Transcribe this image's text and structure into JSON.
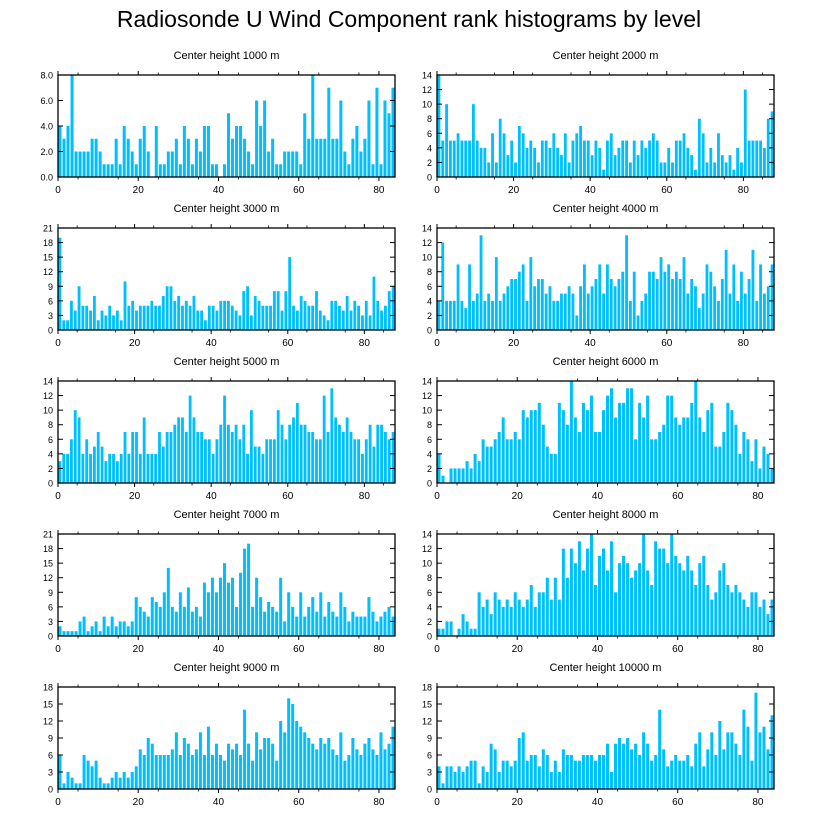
{
  "figure_title": "Radiosonde U Wind Component rank histograms by level",
  "bar_color": "#00bfff",
  "chart_data": [
    {
      "type": "bar",
      "title": "Center height 1000 m",
      "x_start": 0,
      "xticks": [
        0,
        20,
        40,
        60,
        80
      ],
      "ylim": [
        0,
        8
      ],
      "yticks": [
        0,
        2,
        4,
        6,
        8
      ],
      "ytick_labels": [
        "0.0",
        "2.0",
        "4.0",
        "6.0",
        "8.0"
      ],
      "values": [
        4,
        3,
        4,
        8,
        2,
        2,
        2,
        2,
        3,
        3,
        2,
        1,
        1,
        1,
        3,
        1,
        4,
        3,
        2,
        1,
        3,
        4,
        2,
        0,
        4,
        1,
        1,
        2,
        2,
        3,
        1,
        4,
        3,
        1,
        3,
        2,
        4,
        4,
        1,
        1,
        0,
        1,
        5,
        3,
        4,
        4,
        3,
        2,
        1,
        6,
        4,
        6,
        2,
        3,
        1,
        1,
        2,
        2,
        2,
        2,
        1,
        5,
        3,
        8,
        3,
        3,
        3,
        7,
        3,
        3,
        6,
        2,
        1,
        3,
        4,
        2,
        3,
        6,
        1,
        7,
        1,
        6,
        5,
        7
      ]
    },
    {
      "type": "bar",
      "title": "Center height 2000 m",
      "x_start": 0,
      "xticks": [
        0,
        20,
        40,
        60,
        80
      ],
      "ylim": [
        0,
        14
      ],
      "yticks": [
        0,
        2,
        4,
        6,
        8,
        10,
        12,
        14
      ],
      "ytick_labels": [
        "0",
        "2",
        "4",
        "6",
        "8",
        "10",
        "12",
        "14"
      ],
      "values": [
        14,
        5,
        10,
        5,
        5,
        6,
        5,
        5,
        5,
        10,
        5,
        4,
        4,
        2,
        6,
        2,
        8,
        6,
        3,
        5,
        2,
        7,
        6,
        4,
        5,
        4,
        2,
        5,
        5,
        4,
        6,
        4,
        3,
        6,
        2,
        5,
        6,
        7,
        5,
        5,
        3,
        5,
        4,
        1,
        5,
        6,
        3,
        4,
        5,
        5,
        2,
        5,
        3,
        5,
        4,
        5,
        6,
        5,
        2,
        2,
        4,
        2,
        5,
        5,
        6,
        4,
        3,
        1,
        8,
        6,
        2,
        4,
        2,
        6,
        3,
        2,
        3,
        1,
        4,
        2,
        12,
        5,
        5,
        5,
        5,
        4,
        8,
        9
      ]
    },
    {
      "type": "bar",
      "title": "Center height 3000 m",
      "x_start": 0,
      "xticks": [
        0,
        20,
        40,
        60,
        80
      ],
      "ylim": [
        0,
        21
      ],
      "yticks": [
        0,
        3,
        6,
        9,
        12,
        15,
        18,
        21
      ],
      "ytick_labels": [
        "0",
        "3",
        "6",
        "9",
        "12",
        "15",
        "18",
        "21"
      ],
      "values": [
        19,
        2,
        2,
        6,
        4,
        9,
        5,
        5,
        4,
        7,
        2,
        4,
        3,
        5,
        3,
        4,
        2,
        10,
        5,
        6,
        4,
        5,
        5,
        5,
        6,
        5,
        5,
        7,
        9,
        9,
        6,
        7,
        5,
        6,
        5,
        7,
        4,
        4,
        2,
        5,
        5,
        4,
        6,
        6,
        6,
        5,
        4,
        3,
        8,
        9,
        3,
        7,
        6,
        5,
        5,
        5,
        8,
        8,
        4,
        8,
        15,
        5,
        4,
        7,
        6,
        5,
        5,
        8,
        4,
        3,
        2,
        6,
        6,
        5,
        4,
        7,
        4,
        6,
        5,
        3,
        6,
        3,
        11,
        6,
        4,
        5,
        8,
        9
      ]
    },
    {
      "type": "bar",
      "title": "Center height 4000 m",
      "x_start": 0,
      "xticks": [
        0,
        20,
        40,
        60,
        80
      ],
      "ylim": [
        0,
        14
      ],
      "yticks": [
        0,
        2,
        4,
        6,
        8,
        10,
        12,
        14
      ],
      "ytick_labels": [
        "0",
        "2",
        "4",
        "6",
        "8",
        "10",
        "12",
        "14"
      ],
      "values": [
        4,
        12,
        4,
        4,
        4,
        9,
        4,
        3,
        9,
        4,
        5,
        13,
        4,
        5,
        4,
        10,
        4,
        5,
        6,
        7,
        7,
        8,
        9,
        4,
        10,
        6,
        7,
        7,
        5,
        6,
        4,
        4,
        5,
        5,
        6,
        5,
        2,
        6,
        9,
        5,
        6,
        7,
        9,
        5,
        9,
        7,
        6,
        7,
        8,
        13,
        4,
        8,
        2,
        4,
        5,
        8,
        8,
        7,
        10,
        8,
        9,
        7,
        8,
        7,
        10,
        5,
        7,
        6,
        3,
        5,
        9,
        8,
        6,
        4,
        7,
        11,
        5,
        9,
        4,
        8,
        5,
        7,
        11,
        4,
        9,
        5,
        6,
        9
      ]
    },
    {
      "type": "bar",
      "title": "Center height 5000 m",
      "x_start": 0,
      "xticks": [
        0,
        20,
        40,
        60,
        80
      ],
      "ylim": [
        0,
        14
      ],
      "yticks": [
        0,
        2,
        4,
        6,
        8,
        10,
        12,
        14
      ],
      "ytick_labels": [
        "0",
        "2",
        "4",
        "6",
        "8",
        "10",
        "12",
        "14"
      ],
      "values": [
        3,
        4,
        4,
        6,
        10,
        9,
        4,
        6,
        4,
        5,
        7,
        5,
        3,
        4,
        4,
        3,
        4,
        7,
        4,
        7,
        7,
        4,
        9,
        4,
        4,
        4,
        7,
        5,
        7,
        7,
        8,
        9,
        9,
        7,
        12,
        9,
        7,
        7,
        6,
        6,
        4,
        6,
        8,
        12,
        8,
        7,
        8,
        6,
        8,
        4,
        10,
        5,
        5,
        4,
        6,
        6,
        6,
        10,
        8,
        6,
        8,
        9,
        11,
        8,
        8,
        7,
        7,
        6,
        6,
        12,
        7,
        13,
        9,
        8,
        7,
        9,
        7,
        6,
        6,
        4,
        6,
        8,
        5,
        8,
        8,
        7,
        6,
        7
      ]
    },
    {
      "type": "bar",
      "title": "Center height 6000 m",
      "x_start": 0,
      "xticks": [
        0,
        20,
        40,
        60,
        80
      ],
      "ylim": [
        0,
        14
      ],
      "yticks": [
        0,
        2,
        4,
        6,
        8,
        10,
        12,
        14
      ],
      "ytick_labels": [
        "0",
        "2",
        "4",
        "6",
        "8",
        "10",
        "12",
        "14"
      ],
      "values": [
        4,
        1,
        0,
        2,
        2,
        2,
        2,
        3,
        2,
        4,
        3,
        6,
        5,
        5,
        6,
        7,
        9,
        6,
        6,
        7,
        6,
        10,
        9,
        10,
        10,
        11,
        8,
        5,
        4,
        4,
        11,
        10,
        8,
        14,
        9,
        7,
        11,
        10,
        12,
        7,
        7,
        10,
        12,
        13,
        9,
        11,
        11,
        13,
        13,
        6,
        11,
        9,
        12,
        6,
        6,
        7,
        8,
        12,
        12,
        9,
        8,
        9,
        9,
        11,
        14,
        9,
        7,
        10,
        11,
        5,
        5,
        7,
        11,
        10,
        8,
        4,
        7,
        6,
        3,
        6,
        2,
        5,
        4,
        2
      ]
    },
    {
      "type": "bar",
      "title": "Center height 7000 m",
      "x_start": 0,
      "xticks": [
        0,
        20,
        40,
        60,
        80
      ],
      "ylim": [
        0,
        21
      ],
      "yticks": [
        0,
        3,
        6,
        9,
        12,
        15,
        18,
        21
      ],
      "ytick_labels": [
        "0",
        "3",
        "6",
        "9",
        "12",
        "15",
        "18",
        "21"
      ],
      "values": [
        2,
        1,
        1,
        1,
        1,
        3,
        4,
        1,
        2,
        3,
        1,
        4,
        2,
        4,
        2,
        3,
        3,
        2,
        3,
        8,
        6,
        5,
        4,
        8,
        7,
        6,
        9,
        14,
        6,
        5,
        9,
        6,
        10,
        5,
        6,
        4,
        11,
        9,
        12,
        9,
        12,
        15,
        11,
        12,
        6,
        13,
        18,
        19,
        6,
        12,
        8,
        5,
        7,
        6,
        5,
        12,
        3,
        9,
        6,
        4,
        9,
        4,
        6,
        8,
        5,
        9,
        4,
        7,
        5,
        4,
        9,
        6,
        3,
        5,
        4,
        4,
        4,
        8,
        5,
        3,
        4,
        5,
        6,
        4
      ]
    },
    {
      "type": "bar",
      "title": "Center height 8000 m",
      "x_start": 0,
      "xticks": [
        0,
        20,
        40,
        60,
        80
      ],
      "ylim": [
        0,
        14
      ],
      "yticks": [
        0,
        2,
        4,
        6,
        8,
        10,
        12,
        14
      ],
      "ytick_labels": [
        "0",
        "2",
        "4",
        "6",
        "8",
        "10",
        "12",
        "14"
      ],
      "values": [
        1,
        1,
        2,
        2,
        0,
        1,
        3,
        2,
        1,
        1,
        6,
        4,
        5,
        3,
        6,
        5,
        4,
        5,
        4,
        6,
        5,
        4,
        5,
        7,
        4,
        6,
        6,
        8,
        5,
        8,
        5,
        12,
        8,
        12,
        10,
        13,
        9,
        12,
        14,
        7,
        11,
        12,
        9,
        13,
        6,
        10,
        11,
        10,
        8,
        9,
        10,
        14,
        9,
        7,
        13,
        12,
        12,
        10,
        14,
        11,
        10,
        9,
        11,
        9,
        7,
        10,
        11,
        7,
        5,
        6,
        9,
        10,
        7,
        6,
        7,
        6,
        5,
        4,
        6,
        6,
        4,
        5,
        3,
        5
      ]
    },
    {
      "type": "bar",
      "title": "Center height 9000 m",
      "x_start": 0,
      "xticks": [
        0,
        20,
        40,
        60,
        80
      ],
      "ylim": [
        0,
        18
      ],
      "yticks": [
        0,
        3,
        6,
        9,
        12,
        15,
        18
      ],
      "ytick_labels": [
        "0",
        "3",
        "6",
        "9",
        "12",
        "15",
        "18"
      ],
      "values": [
        6,
        1,
        3,
        2,
        1,
        1,
        6,
        5,
        4,
        5,
        2,
        1,
        1,
        2,
        3,
        2,
        3,
        2,
        3,
        4,
        7,
        6,
        9,
        8,
        6,
        6,
        6,
        6,
        7,
        10,
        6,
        9,
        8,
        6,
        7,
        10,
        6,
        11,
        6,
        8,
        6,
        5,
        8,
        7,
        8,
        6,
        14,
        8,
        5,
        10,
        7,
        9,
        9,
        8,
        5,
        12,
        10,
        16,
        15,
        12,
        11,
        10,
        9,
        8,
        7,
        9,
        8,
        9,
        7,
        6,
        10,
        5,
        6,
        9,
        7,
        6,
        8,
        9,
        7,
        6,
        10,
        7,
        8,
        11
      ]
    },
    {
      "type": "bar",
      "title": "Center height 10000 m",
      "x_start": 0,
      "xticks": [
        0,
        20,
        40,
        60,
        80
      ],
      "ylim": [
        0,
        18
      ],
      "yticks": [
        0,
        3,
        6,
        9,
        12,
        15,
        18
      ],
      "ytick_labels": [
        "0",
        "3",
        "6",
        "9",
        "12",
        "15",
        "18"
      ],
      "values": [
        4,
        1,
        4,
        4,
        3,
        4,
        3,
        4,
        5,
        5,
        1,
        4,
        3,
        8,
        7,
        3,
        5,
        5,
        4,
        5,
        9,
        10,
        5,
        6,
        6,
        4,
        7,
        6,
        3,
        5,
        3,
        7,
        6,
        6,
        5,
        5,
        6,
        6,
        6,
        5,
        6,
        6,
        8,
        3,
        8,
        9,
        8,
        9,
        7,
        8,
        6,
        10,
        8,
        5,
        6,
        14,
        7,
        4,
        5,
        6,
        5,
        5,
        6,
        4,
        8,
        10,
        4,
        7,
        10,
        6,
        12,
        7,
        10,
        10,
        8,
        6,
        14,
        11,
        5,
        17,
        10,
        11,
        7,
        13
      ]
    }
  ]
}
